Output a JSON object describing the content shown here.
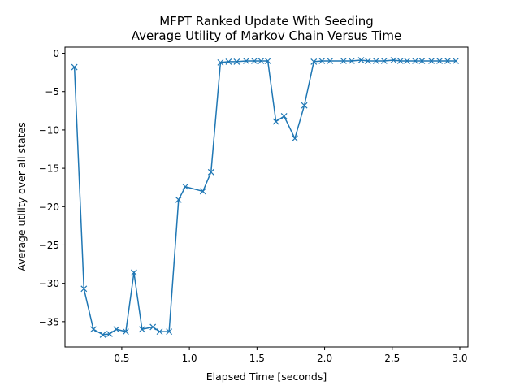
{
  "chart_data": {
    "type": "line",
    "title_line1": "MFPT Ranked Update With Seeding",
    "title_line2": "Average Utility of Markov Chain Versus Time",
    "xlabel": "Elapsed Time [seconds]",
    "ylabel": "Average utility over all states",
    "xlim": [
      0.08,
      3.06
    ],
    "ylim": [
      -38.3,
      0.8
    ],
    "xticks": [
      0.5,
      1.0,
      1.5,
      2.0,
      2.5,
      3.0
    ],
    "xtick_labels": [
      "0.5",
      "1.0",
      "1.5",
      "2.0",
      "2.5",
      "3.0"
    ],
    "yticks": [
      0,
      -5,
      -10,
      -15,
      -20,
      -25,
      -30,
      -35
    ],
    "ytick_labels": [
      "0",
      "−5",
      "−10",
      "−15",
      "−20",
      "−25",
      "−30",
      "−35"
    ],
    "grid": false,
    "marker": "x",
    "line_color": "#1f77b4",
    "series": [
      {
        "x": [
          0.15,
          0.22,
          0.29,
          0.36,
          0.41,
          0.46,
          0.53,
          0.59,
          0.65,
          0.73,
          0.78,
          0.85,
          0.92,
          0.97,
          1.1,
          1.16,
          1.23,
          1.29,
          1.35,
          1.42,
          1.48,
          1.53,
          1.58,
          1.64,
          1.7,
          1.78,
          1.85,
          1.92,
          1.98,
          2.04,
          2.14,
          2.2,
          2.27,
          2.32,
          2.38,
          2.44,
          2.51,
          2.56,
          2.61,
          2.67,
          2.72,
          2.79,
          2.85,
          2.91,
          2.97
        ],
        "y": [
          -1.8,
          -30.7,
          -36.0,
          -36.7,
          -36.6,
          -36.0,
          -36.3,
          -28.6,
          -36.0,
          -35.7,
          -36.3,
          -36.3,
          -19.1,
          -17.4,
          -18.0,
          -15.5,
          -1.2,
          -1.1,
          -1.1,
          -1.0,
          -1.0,
          -1.0,
          -1.0,
          -8.9,
          -8.2,
          -11.1,
          -6.8,
          -1.1,
          -1.0,
          -1.0,
          -1.0,
          -1.0,
          -0.9,
          -1.0,
          -1.0,
          -1.0,
          -0.9,
          -1.0,
          -1.0,
          -1.0,
          -1.0,
          -1.0,
          -1.0,
          -1.0,
          -1.0
        ]
      }
    ]
  }
}
